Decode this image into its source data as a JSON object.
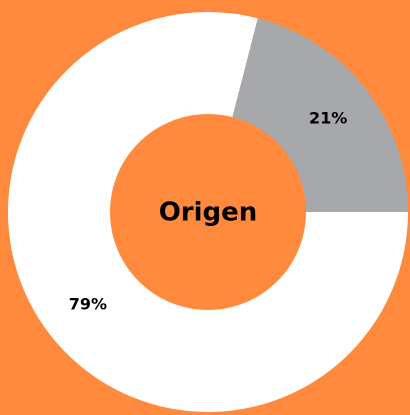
{
  "chart_data": {
    "type": "donut",
    "center_label": "Origen",
    "categories": [
      null,
      null
    ],
    "values": [
      21,
      79
    ],
    "value_labels": [
      "21%",
      "79%"
    ],
    "colors": [
      "#a7a8ab",
      "#ffffff"
    ],
    "background": "#ff8a3d"
  }
}
